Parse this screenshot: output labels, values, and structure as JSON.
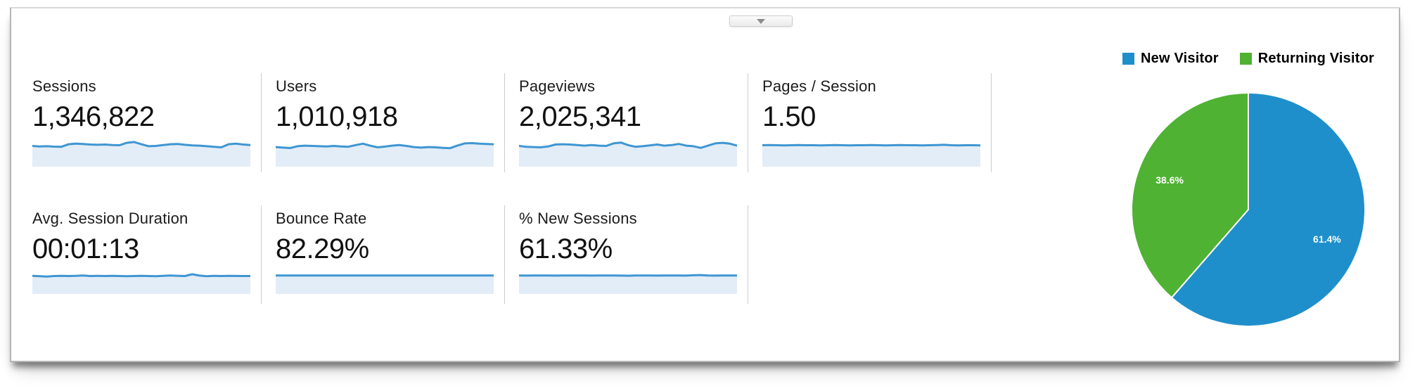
{
  "panel": {
    "collapse_button": {
      "icon": "triangle-down"
    }
  },
  "metrics": {
    "row1": [
      {
        "label": "Sessions",
        "value": "1,346,822",
        "spark": [
          0.5,
          0.46,
          0.48,
          0.45,
          0.44,
          0.62,
          0.66,
          0.64,
          0.6,
          0.58,
          0.6,
          0.56,
          0.55,
          0.72,
          0.78,
          0.62,
          0.48,
          0.5,
          0.56,
          0.62,
          0.64,
          0.58,
          0.54,
          0.52,
          0.48,
          0.44,
          0.4,
          0.62,
          0.66,
          0.6,
          0.56
        ]
      },
      {
        "label": "Users",
        "value": "1,010,918",
        "spark": [
          0.42,
          0.38,
          0.35,
          0.48,
          0.52,
          0.5,
          0.48,
          0.46,
          0.5,
          0.46,
          0.44,
          0.56,
          0.66,
          0.52,
          0.4,
          0.45,
          0.52,
          0.56,
          0.5,
          0.42,
          0.38,
          0.42,
          0.4,
          0.36,
          0.34,
          0.52,
          0.68,
          0.7,
          0.66,
          0.64,
          0.62
        ]
      },
      {
        "label": "Pageviews",
        "value": "2,025,341",
        "spark": [
          0.5,
          0.44,
          0.42,
          0.4,
          0.46,
          0.6,
          0.62,
          0.6,
          0.56,
          0.52,
          0.56,
          0.52,
          0.5,
          0.68,
          0.74,
          0.56,
          0.44,
          0.48,
          0.54,
          0.6,
          0.52,
          0.56,
          0.64,
          0.52,
          0.48,
          0.36,
          0.52,
          0.68,
          0.72,
          0.66,
          0.52
        ]
      },
      {
        "label": "Pages / Session",
        "value": "1.50",
        "spark": [
          0.55,
          0.56,
          0.55,
          0.54,
          0.55,
          0.56,
          0.55,
          0.55,
          0.54,
          0.55,
          0.56,
          0.55,
          0.54,
          0.55,
          0.55,
          0.56,
          0.55,
          0.54,
          0.55,
          0.56,
          0.55,
          0.55,
          0.54,
          0.55,
          0.56,
          0.58,
          0.55,
          0.54,
          0.55,
          0.55,
          0.54
        ]
      }
    ],
    "row2": [
      {
        "label": "Avg. Session Duration",
        "value": "00:01:13",
        "spark": [
          0.52,
          0.48,
          0.44,
          0.5,
          0.52,
          0.5,
          0.52,
          0.55,
          0.5,
          0.52,
          0.5,
          0.52,
          0.5,
          0.48,
          0.5,
          0.52,
          0.5,
          0.48,
          0.52,
          0.55,
          0.52,
          0.5,
          0.68,
          0.54,
          0.48,
          0.52,
          0.5,
          0.52,
          0.51,
          0.5,
          0.5
        ]
      },
      {
        "label": "Bounce Rate",
        "value": "82.29%",
        "spark": [
          0.56,
          0.56,
          0.55,
          0.56,
          0.56,
          0.55,
          0.56,
          0.56,
          0.56,
          0.55,
          0.56,
          0.56,
          0.55,
          0.56,
          0.56,
          0.56,
          0.55,
          0.56,
          0.56,
          0.55,
          0.56,
          0.56,
          0.56,
          0.55,
          0.56,
          0.56,
          0.55,
          0.56,
          0.56,
          0.56,
          0.56
        ]
      },
      {
        "label": "% New Sessions",
        "value": "61.33%",
        "spark": [
          0.55,
          0.54,
          0.55,
          0.56,
          0.55,
          0.54,
          0.55,
          0.55,
          0.56,
          0.55,
          0.54,
          0.55,
          0.56,
          0.55,
          0.54,
          0.53,
          0.55,
          0.56,
          0.55,
          0.54,
          0.55,
          0.56,
          0.55,
          0.54,
          0.58,
          0.6,
          0.55,
          0.54,
          0.55,
          0.56,
          0.55
        ]
      }
    ]
  },
  "chart_data": {
    "type": "pie",
    "legend_position": "top",
    "start_angle": "top",
    "direction": "clockwise",
    "legend": [
      "New Visitor",
      "Returning Visitor"
    ],
    "slices": [
      {
        "label": "New Visitor",
        "value": 61.4,
        "display": "61.4%",
        "color": "#1e8fcb"
      },
      {
        "label": "Returning Visitor",
        "value": 38.6,
        "display": "38.6%",
        "color": "#4fb233"
      }
    ]
  },
  "colors": {
    "spark_line": "#3f96d2",
    "spark_fill": "#e3edf7",
    "divider": "#cccccc",
    "pie_blue": "#1e8fcb",
    "pie_green": "#4fb233"
  }
}
